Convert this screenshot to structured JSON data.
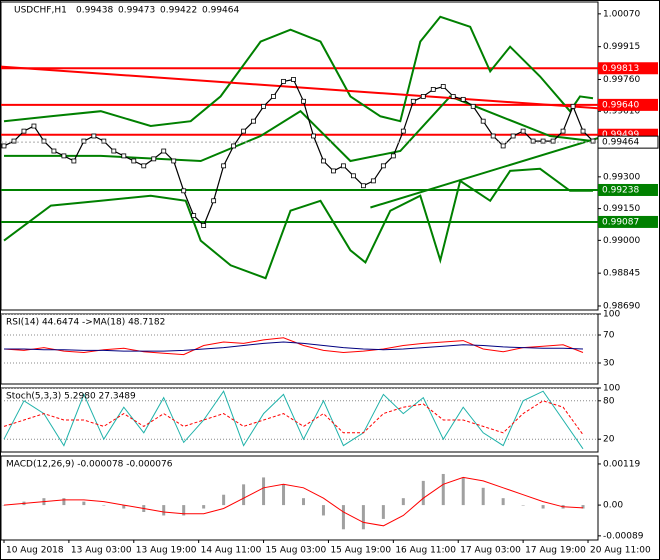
{
  "chart_data": [
    {
      "type": "price",
      "title": "USDCHF,H1",
      "ohlc": [
        0.99438,
        0.99473,
        0.99422,
        0.99464
      ],
      "xlim": [
        -0.3,
        59.5
      ],
      "xticks": [
        {
          "value": 0,
          "label": "10 Aug 2018"
        },
        {
          "value": 6.5,
          "label": "13 Aug 03:00"
        },
        {
          "value": 13,
          "label": "13 Aug 19:00"
        },
        {
          "value": 19.5,
          "label": "14 Aug 11:00"
        },
        {
          "value": 26,
          "label": "15 Aug 03:00"
        },
        {
          "value": 32.5,
          "label": "15 Aug 19:00"
        },
        {
          "value": 39,
          "label": "16 Aug 11:00"
        },
        {
          "value": 45.5,
          "label": "17 Aug 03:00"
        },
        {
          "value": 52,
          "label": "17 Aug 19:00"
        },
        {
          "value": 58.5,
          "label": "20 Aug 11:00"
        }
      ],
      "ylim": [
        0.98671,
        1.00126
      ],
      "yticks": [
        {
          "value": 1.0007,
          "label": "1.00070"
        },
        {
          "value": 0.99915,
          "label": "0.99915"
        },
        {
          "value": 0.9976,
          "label": "0.99760"
        },
        {
          "value": 0.9961,
          "label": "0.99610"
        },
        {
          "value": 0.993,
          "label": "0.99300"
        },
        {
          "value": 0.9915,
          "label": "0.99150"
        },
        {
          "value": 0.99,
          "label": "0.99000"
        },
        {
          "value": 0.98845,
          "label": "0.98845"
        },
        {
          "value": 0.9869,
          "label": "0.98690"
        }
      ],
      "levels": [
        {
          "value": 0.99813,
          "label": "0.99813",
          "color": "#ff0000"
        },
        {
          "value": 0.9964,
          "label": "0.99640",
          "color": "#ff0000"
        },
        {
          "value": 0.99499,
          "label": "0.99499",
          "color": "#ff0000"
        },
        {
          "value": 0.99238,
          "label": "0.99238",
          "color": "#008000"
        },
        {
          "value": 0.99087,
          "label": "0.99087",
          "color": "#008000"
        }
      ],
      "current": {
        "value": 0.99464,
        "label": "0.99464"
      },
      "series": [
        {
          "style": "band",
          "color": "#008000",
          "x": [
            0,
            4.7,
            9.7,
            14.7,
            18.7,
            21.7,
            25.7,
            28.7,
            31.7,
            34.7,
            37.7,
            39.7,
            41.7,
            43.7,
            46.7,
            48.7,
            50.7,
            53.7,
            56.7,
            57.7,
            59
          ],
          "values": [
            0.99563,
            0.99586,
            0.9961,
            0.9954,
            0.99563,
            0.9968,
            0.99939,
            0.99995,
            0.99939,
            0.9968,
            0.99586,
            0.99563,
            0.99939,
            1.00056,
            1.00009,
            0.99798,
            0.99915,
            0.99774,
            0.9961,
            0.9968,
            0.99671
          ]
        },
        {
          "style": "band",
          "color": "#008000",
          "x": [
            0,
            4.7,
            9.7,
            14.7,
            18.2,
            19.7,
            22.7,
            26.2,
            28.7,
            31.7,
            34.7,
            36.2,
            38.7,
            41.7,
            43.7,
            45.7,
            48.7,
            50.7,
            53.7,
            56.7,
            59
          ],
          "values": [
            0.98999,
            0.99164,
            0.99187,
            0.99211,
            0.99187,
            0.98999,
            0.98882,
            0.98821,
            0.9914,
            0.99187,
            0.98953,
            0.98896,
            0.9914,
            0.99211,
            0.98906,
            0.99281,
            0.99187,
            0.99328,
            0.99338,
            0.99234,
            0.99234
          ]
        },
        {
          "style": "band",
          "color": "#008000",
          "x": [
            0,
            9.7,
            19.7,
            25.7,
            29.7,
            34.7,
            39.7,
            44.7,
            49.7,
            54.7,
            59
          ],
          "values": [
            0.99399,
            0.99399,
            0.99375,
            0.99493,
            0.9961,
            0.99375,
            0.99422,
            0.9968,
            0.99586,
            0.99493,
            0.99469
          ]
        },
        {
          "style": "trend",
          "color": "#ff0000",
          "x": [
            -0.3,
            59.5
          ],
          "values": [
            0.99821,
            0.99624
          ]
        },
        {
          "style": "trend",
          "color": "#008000",
          "x": [
            36.7,
            59.5
          ],
          "values": [
            0.99155,
            0.99483
          ]
        },
        {
          "style": "price",
          "color": "#000000",
          "x": [
            0,
            1,
            2,
            3,
            4,
            5,
            6,
            7,
            8,
            9,
            10,
            11,
            12,
            13,
            14,
            15,
            16,
            17,
            18,
            19,
            20,
            21,
            22,
            23,
            24,
            25,
            26,
            27,
            28,
            29,
            30,
            31,
            32,
            33,
            34,
            35,
            36,
            37,
            38,
            39,
            40,
            41,
            42,
            43,
            44,
            45,
            46,
            47,
            48,
            49,
            50,
            51,
            52,
            53,
            54,
            55,
            56,
            57,
            58,
            59
          ],
          "values": [
            0.99446,
            0.99469,
            0.99516,
            0.9954,
            0.99469,
            0.99422,
            0.99399,
            0.99375,
            0.99469,
            0.99493,
            0.99469,
            0.99422,
            0.99399,
            0.99375,
            0.99352,
            0.99385,
            0.99422,
            0.99375,
            0.99234,
            0.99117,
            0.9907,
            0.99187,
            0.99352,
            0.99446,
            0.99516,
            0.99563,
            0.99633,
            0.9968,
            0.99751,
            0.9976,
            0.99657,
            0.99493,
            0.99375,
            0.99328,
            0.99352,
            0.99305,
            0.99258,
            0.99281,
            0.99352,
            0.99399,
            0.99516,
            0.99657,
            0.9968,
            0.99713,
            0.99727,
            0.9968,
            0.99666,
            0.99633,
            0.99563,
            0.99493,
            0.99446,
            0.99493,
            0.99516,
            0.99469,
            0.99469,
            0.99469,
            0.99516,
            0.99633,
            0.99516,
            0.99469
          ]
        }
      ]
    },
    {
      "type": "oscillator",
      "title": "RSI(14) 44.6474 ->MA(18) 48.7182",
      "xlim": [
        -0.3,
        59.5
      ],
      "ylim": [
        0,
        100
      ],
      "yticks": [
        100,
        70,
        30
      ],
      "grid": true,
      "series": [
        {
          "style": "line",
          "color": "#ff0000",
          "x": [
            0,
            2,
            4,
            6,
            8,
            10,
            12,
            14,
            16,
            18,
            20,
            22,
            24,
            26,
            28,
            30,
            32,
            34,
            36,
            38,
            40,
            42,
            44,
            46,
            48,
            50,
            52,
            54,
            56,
            58
          ],
          "values": [
            50,
            48,
            52,
            47,
            45,
            49,
            51,
            46,
            44,
            42,
            55,
            60,
            58,
            63,
            66,
            55,
            48,
            45,
            47,
            50,
            55,
            58,
            60,
            62,
            50,
            46,
            52,
            54,
            56,
            45
          ]
        },
        {
          "style": "line",
          "color": "#000080",
          "x": [
            0,
            2,
            4,
            6,
            8,
            10,
            12,
            14,
            16,
            18,
            20,
            22,
            24,
            26,
            28,
            30,
            32,
            34,
            36,
            38,
            40,
            42,
            44,
            46,
            48,
            50,
            52,
            54,
            56,
            58
          ],
          "values": [
            50,
            50,
            49,
            49,
            48,
            48,
            47,
            47,
            47,
            48,
            50,
            52,
            55,
            58,
            60,
            58,
            55,
            52,
            50,
            49,
            50,
            52,
            54,
            56,
            55,
            53,
            52,
            51,
            51,
            50
          ]
        }
      ]
    },
    {
      "type": "oscillator",
      "title": "Stoch(5,3,3) 5.2980 27.3489",
      "xlim": [
        -0.3,
        59.5
      ],
      "ylim": [
        0,
        100
      ],
      "yticks": [
        100,
        80,
        20
      ],
      "grid": true,
      "series": [
        {
          "style": "line",
          "color": "#20b2aa",
          "x": [
            0,
            2,
            4,
            6,
            8,
            10,
            12,
            14,
            16,
            18,
            20,
            22,
            24,
            26,
            28,
            30,
            32,
            34,
            36,
            38,
            40,
            42,
            44,
            46,
            48,
            50,
            52,
            54,
            56,
            58
          ],
          "values": [
            20,
            80,
            60,
            10,
            90,
            20,
            70,
            30,
            85,
            15,
            50,
            95,
            10,
            60,
            90,
            20,
            80,
            10,
            30,
            90,
            60,
            85,
            20,
            70,
            30,
            10,
            80,
            95,
            50,
            5
          ]
        },
        {
          "style": "dashed",
          "color": "#ff0000",
          "x": [
            0,
            2,
            4,
            6,
            8,
            10,
            12,
            14,
            16,
            18,
            20,
            22,
            24,
            26,
            28,
            30,
            32,
            34,
            36,
            38,
            40,
            42,
            44,
            46,
            48,
            50,
            52,
            54,
            56,
            58
          ],
          "values": [
            40,
            50,
            60,
            50,
            50,
            40,
            60,
            40,
            60,
            40,
            50,
            60,
            40,
            50,
            60,
            40,
            60,
            30,
            30,
            60,
            70,
            75,
            50,
            50,
            40,
            30,
            60,
            80,
            70,
            27
          ]
        }
      ]
    },
    {
      "type": "oscillator",
      "title": "MACD(12,26,9) -0.000078 -0.000076",
      "xlim": [
        -0.3,
        59.5
      ],
      "ylim": [
        -0.00101,
        0.00142
      ],
      "yticks": [
        0.00119,
        {
          "value": 0,
          "label": "0.00"
        },
        -0.00089
      ],
      "grid": false,
      "series": [
        {
          "style": "histogram",
          "color": "#a0a0a0",
          "x": [
            0,
            2,
            4,
            6,
            8,
            10,
            12,
            14,
            16,
            18,
            20,
            22,
            24,
            26,
            28,
            30,
            32,
            34,
            36,
            38,
            40,
            42,
            44,
            46,
            48,
            50,
            52,
            54,
            56,
            58
          ],
          "values": [
            0,
            0.0001,
            0.0002,
            0.0002,
            0.0001,
            0,
            -0.0001,
            -0.0002,
            -0.0003,
            -0.0003,
            -0.0001,
            0.0003,
            0.0006,
            0.0008,
            0.0006,
            0.0002,
            -0.0003,
            -0.0007,
            -0.0007,
            -0.0004,
            0.0002,
            0.0007,
            0.0009,
            0.0008,
            0.0005,
            0.0002,
            0,
            -0.0001,
            -0.0001,
            -0.0001
          ]
        },
        {
          "style": "line",
          "color": "#ff0000",
          "x": [
            0,
            2,
            4,
            6,
            8,
            10,
            12,
            14,
            16,
            18,
            20,
            22,
            24,
            26,
            28,
            30,
            32,
            34,
            36,
            38,
            40,
            42,
            44,
            46,
            48,
            50,
            52,
            54,
            56,
            58
          ],
          "values": [
            0,
            5e-05,
            0.0001,
            0.00015,
            0.00015,
            0.0001,
            0,
            -0.0001,
            -0.0002,
            -0.00025,
            -0.00025,
            -0.0001,
            0.0002,
            0.0005,
            0.0006,
            0.0005,
            0.0002,
            -0.0002,
            -0.0005,
            -0.0006,
            -0.0003,
            0.0002,
            0.0006,
            0.0008,
            0.0007,
            0.0005,
            0.0003,
            0.0001,
            -5e-05,
            -8e-05
          ]
        }
      ]
    }
  ]
}
